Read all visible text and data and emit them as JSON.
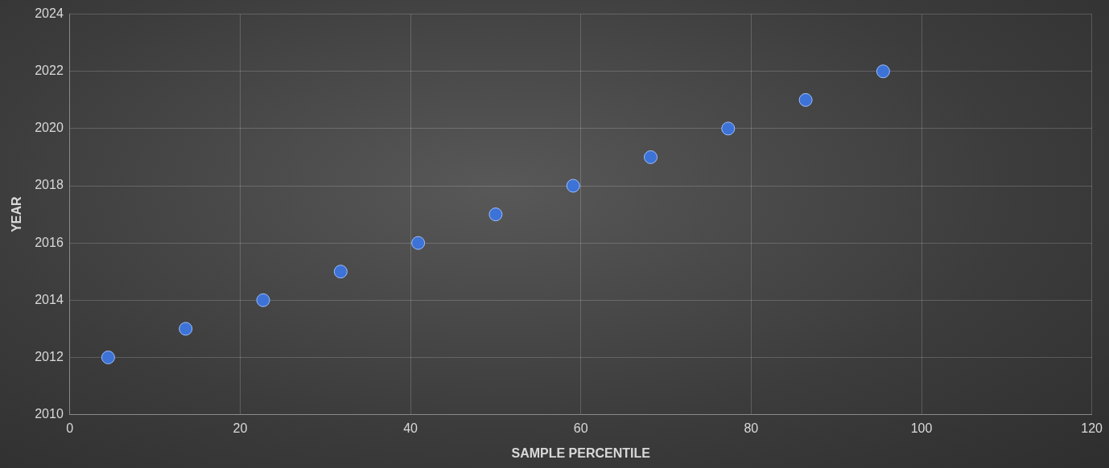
{
  "chart_data": {
    "type": "scatter",
    "xlabel": "SAMPLE PERCENTILE",
    "ylabel": "YEAR",
    "x": [
      4.5,
      13.6,
      22.7,
      31.8,
      40.9,
      50,
      59.1,
      68.2,
      77.3,
      86.4,
      95.5
    ],
    "series": [
      {
        "color": "#3d72d6",
        "values": [
          2012,
          2013,
          2014,
          2015,
          2016,
          2017,
          2018,
          2019,
          2020,
          2021,
          2022
        ]
      }
    ],
    "xlim": [
      0,
      120
    ],
    "xticks": [
      0,
      20,
      40,
      60,
      80,
      100,
      120
    ],
    "ylim": [
      2010,
      2024
    ],
    "yticks": [
      2010,
      2012,
      2014,
      2016,
      2018,
      2020,
      2022,
      2024
    ],
    "grid": true,
    "marker": "circle"
  }
}
